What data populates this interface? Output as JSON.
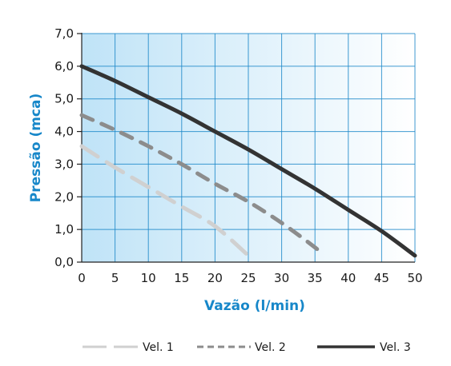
{
  "chart_data": {
    "type": "line",
    "title": "",
    "xlabel": "Vazão (l/min)",
    "ylabel": "Pressão (mca)",
    "xlim": [
      0,
      50
    ],
    "ylim": [
      0,
      7
    ],
    "grid": true,
    "legend_position": "bottom",
    "x_ticks": [
      "0",
      "5",
      "10",
      "15",
      "20",
      "25",
      "30",
      "35",
      "40",
      "45",
      "50"
    ],
    "y_ticks": [
      "0,0",
      "1,0",
      "2,0",
      "3,0",
      "4,0",
      "5,0",
      "6,0",
      "7,0"
    ],
    "series": [
      {
        "name": "Vel. 1",
        "color": "#d0d0d0",
        "style": "dashed-long",
        "points": [
          [
            0,
            3.55
          ],
          [
            5,
            2.9
          ],
          [
            10,
            2.3
          ],
          [
            15,
            1.7
          ],
          [
            20,
            1.1
          ],
          [
            25,
            0.2
          ]
        ]
      },
      {
        "name": "Vel. 2",
        "color": "#8c8c8c",
        "style": "dashed",
        "points": [
          [
            0,
            4.5
          ],
          [
            5,
            4.05
          ],
          [
            10,
            3.55
          ],
          [
            15,
            3.0
          ],
          [
            20,
            2.4
          ],
          [
            25,
            1.85
          ],
          [
            30,
            1.2
          ],
          [
            35,
            0.45
          ],
          [
            36,
            0.25
          ]
        ]
      },
      {
        "name": "Vel. 3",
        "color": "#333333",
        "style": "solid",
        "points": [
          [
            0,
            6.0
          ],
          [
            5,
            5.55
          ],
          [
            10,
            5.05
          ],
          [
            15,
            4.55
          ],
          [
            20,
            4.0
          ],
          [
            25,
            3.45
          ],
          [
            30,
            2.85
          ],
          [
            35,
            2.25
          ],
          [
            40,
            1.6
          ],
          [
            45,
            0.95
          ],
          [
            50,
            0.2
          ]
        ]
      }
    ],
    "colors": {
      "axis_title": "#1787c9",
      "grid": "#1d88c9",
      "bg_left": "#bfe3f7",
      "bg_right": "#ffffff"
    }
  }
}
